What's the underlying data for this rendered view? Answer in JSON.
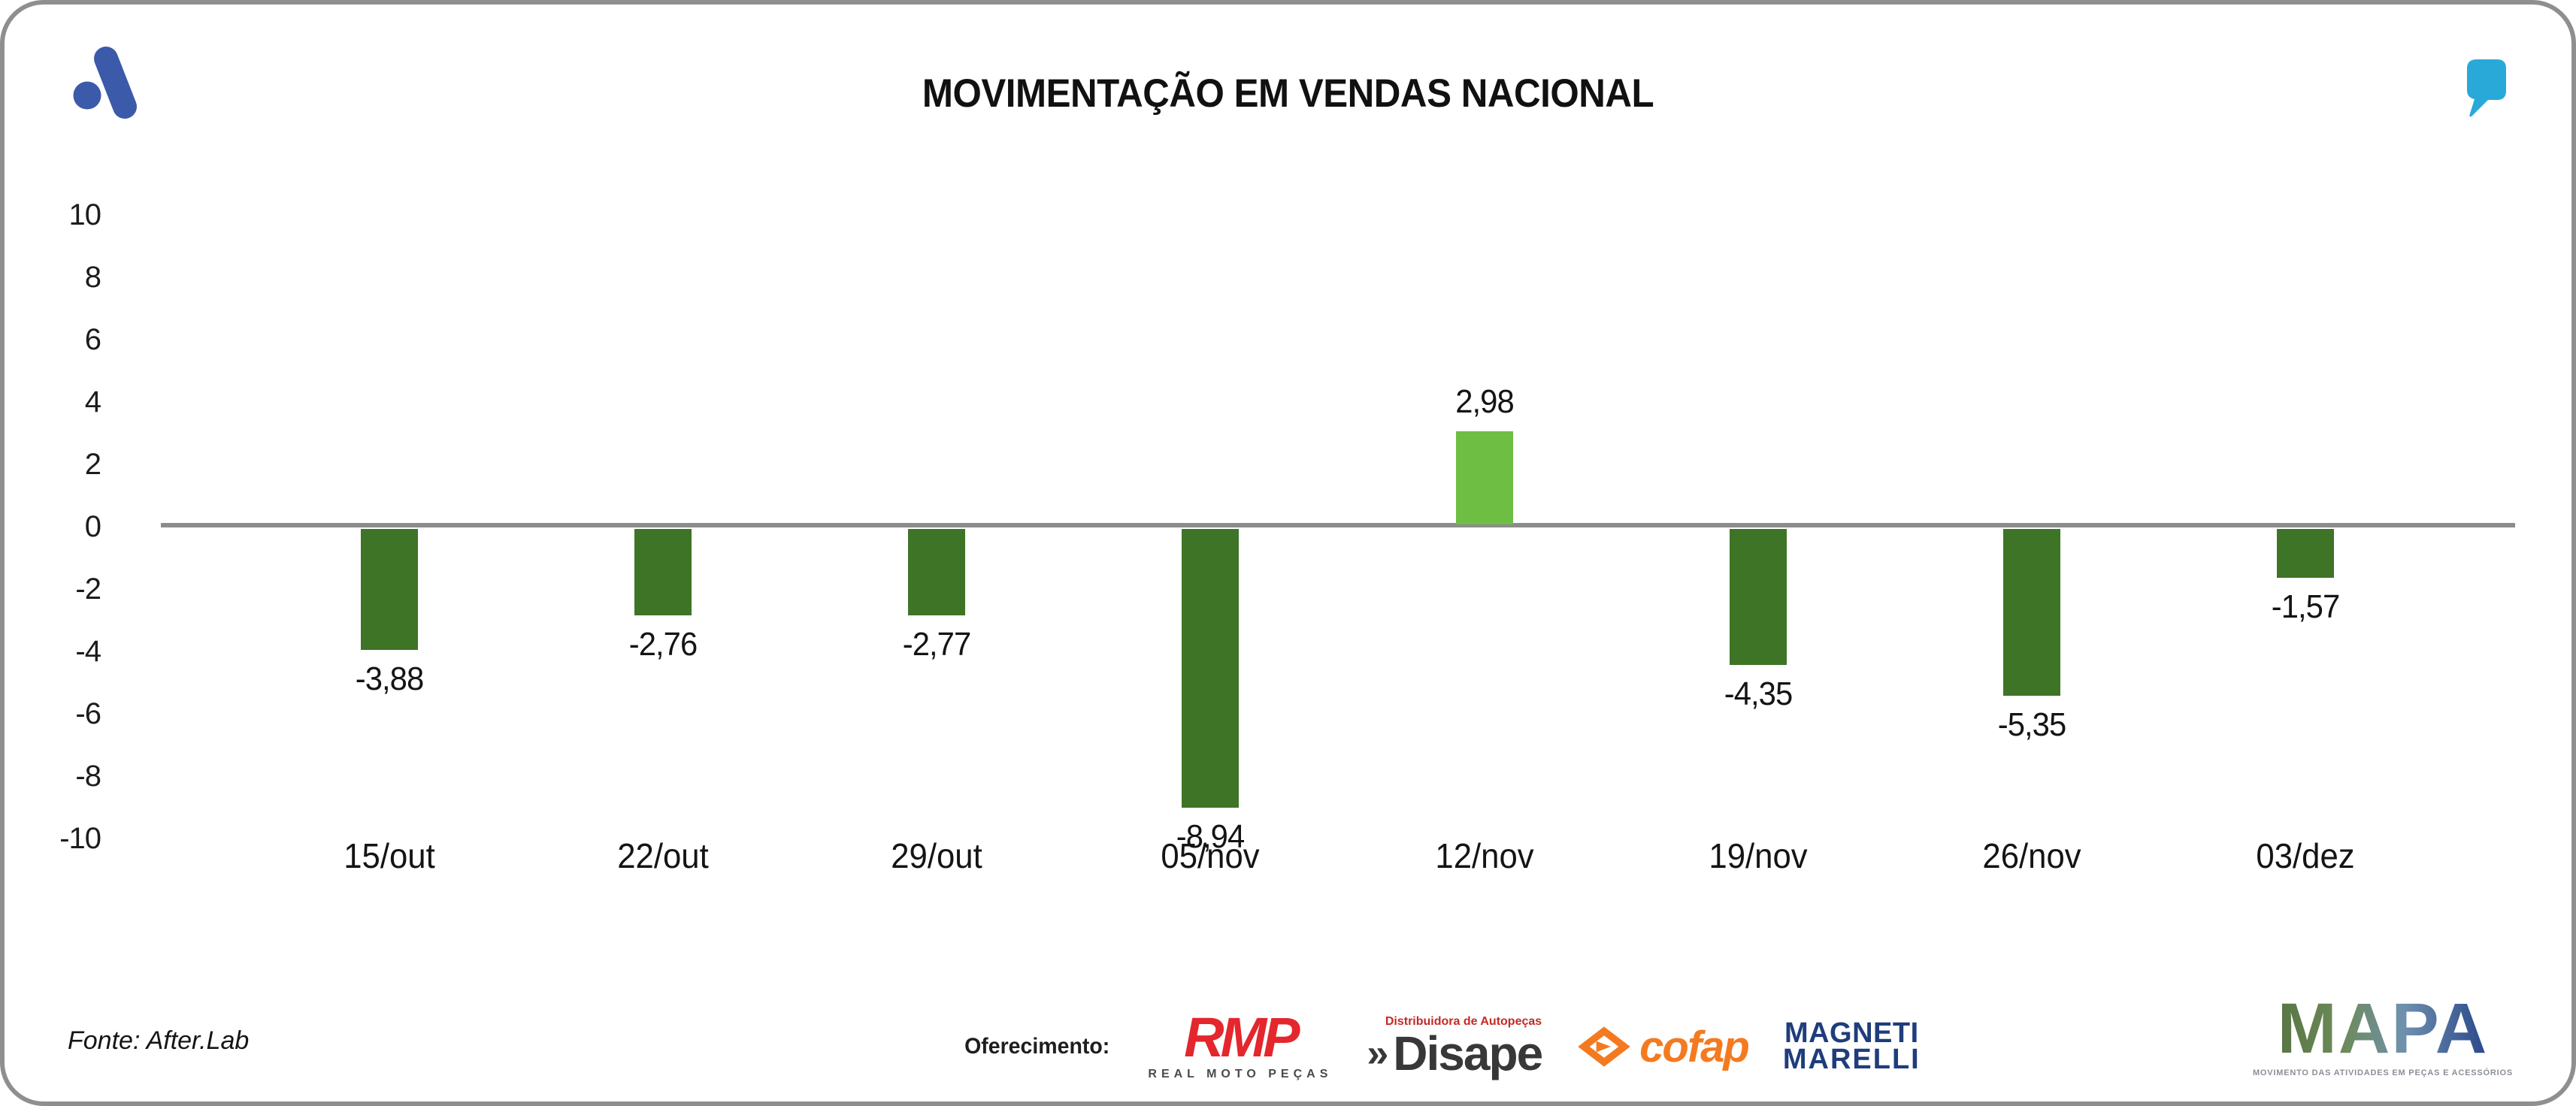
{
  "header": {
    "title": "MOVIMENTAÇÃO EM VENDAS NACIONAL"
  },
  "brand": {
    "logo_color": "#3b5aa9",
    "quote_color": "#29a9d8"
  },
  "chart_data": {
    "type": "bar",
    "title": "MOVIMENTAÇÃO EM VENDAS NACIONAL",
    "categories": [
      "15/out",
      "22/out",
      "29/out",
      "05/nov",
      "12/nov",
      "19/nov",
      "26/nov",
      "03/dez"
    ],
    "values": [
      -3.88,
      -2.76,
      -2.77,
      -8.94,
      2.98,
      -4.35,
      -5.35,
      -1.57
    ],
    "value_labels": [
      "-3,88",
      "-2,76",
      "-2,77",
      "-8,94",
      "2,98",
      "-4,35",
      "-5,35",
      "-1,57"
    ],
    "y_ticks": [
      10,
      8,
      6,
      4,
      2,
      0,
      -2,
      -4,
      -6,
      -8,
      -10
    ],
    "ylim": [
      -10,
      10
    ],
    "xlabel": "",
    "ylabel": "",
    "grid": false,
    "legend": false,
    "colors": {
      "positive": "#6fbe44",
      "negative": "#3e7426",
      "zero_line": "#8c8c8c"
    }
  },
  "footer": {
    "source_label": "Fonte: After.Lab",
    "sponsor_label": "Oferecimento:",
    "sponsors": [
      {
        "name": "RMP",
        "subtitle": "REAL MOTO PEÇAS",
        "color": "#e4262d"
      },
      {
        "name": "Disape",
        "chevron": "»",
        "tagline": "Distribuidora de Autopeças",
        "color": "#383838"
      },
      {
        "name": "cofap",
        "color": "#f47a20"
      },
      {
        "line1": "MAGNETI",
        "line2": "MARELLI",
        "color": "#1f3d7c"
      }
    ],
    "mapa": {
      "name": "MAPA",
      "tagline": "MOVIMENTO DAS ATIVIDADES EM PEÇAS E ACESSÓRIOS"
    }
  }
}
